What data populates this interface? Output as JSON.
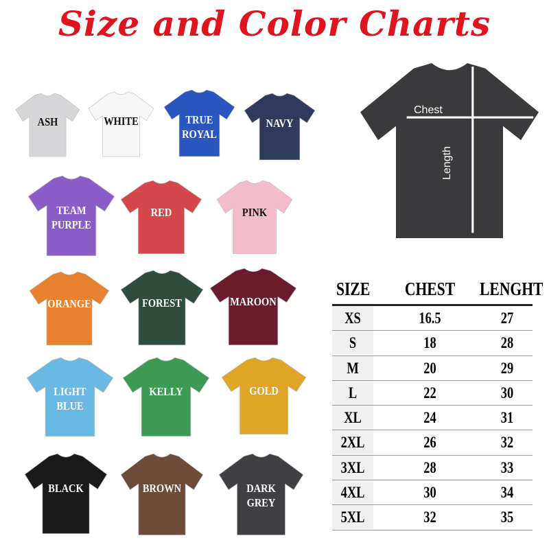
{
  "title": "Size and Color Charts",
  "colors": [
    {
      "label": "ASH",
      "fill": "#d6d6d8",
      "text": "#111111"
    },
    {
      "label": "WHITE",
      "fill": "#f7f7f7",
      "text": "#111111"
    },
    {
      "label": "TRUE\nROYAL",
      "fill": "#2a56c0",
      "text": "#ffffff"
    },
    {
      "label": "NAVY",
      "fill": "#2f3a5c",
      "text": "#ffffff"
    },
    {
      "label": "TEAM\nPURPLE",
      "fill": "#8a5cc8",
      "text": "#ffffff"
    },
    {
      "label": "RED",
      "fill": "#d4474c",
      "text": "#ffffff"
    },
    {
      "label": "PINK",
      "fill": "#f4bccb",
      "text": "#111111"
    },
    {
      "label": "ORANGE",
      "fill": "#e8822e",
      "text": "#ffffff"
    },
    {
      "label": "FOREST",
      "fill": "#2f4d3c",
      "text": "#ffffff"
    },
    {
      "label": "MAROON",
      "fill": "#6b1c2a",
      "text": "#ffffff"
    },
    {
      "label": "LIGHT\nBLUE",
      "fill": "#6ab8e4",
      "text": "#ffffff"
    },
    {
      "label": "KELLY",
      "fill": "#3d9a55",
      "text": "#ffffff"
    },
    {
      "label": "GOLD",
      "fill": "#e0a526",
      "text": "#ffffff"
    },
    {
      "label": "BLACK",
      "fill": "#1a1a1a",
      "text": "#ffffff"
    },
    {
      "label": "BROWN",
      "fill": "#6e4a38",
      "text": "#ffffff"
    },
    {
      "label": "DARK\nGREY",
      "fill": "#3f3f44",
      "text": "#ffffff"
    }
  ],
  "diagram": {
    "chest_label": "Chest",
    "length_label": "Length",
    "shirt_color": "#3a3a3c"
  },
  "size_table": {
    "headers": [
      "SIZE",
      "CHEST",
      "LENGHT"
    ],
    "rows": [
      [
        "XS",
        "16.5",
        "27"
      ],
      [
        "S",
        "18",
        "28"
      ],
      [
        "M",
        "20",
        "29"
      ],
      [
        "L",
        "22",
        "30"
      ],
      [
        "XL",
        "24",
        "31"
      ],
      [
        "2XL",
        "26",
        "32"
      ],
      [
        "3XL",
        "28",
        "33"
      ],
      [
        "4XL",
        "30",
        "34"
      ],
      [
        "5XL",
        "32",
        "35"
      ]
    ]
  }
}
